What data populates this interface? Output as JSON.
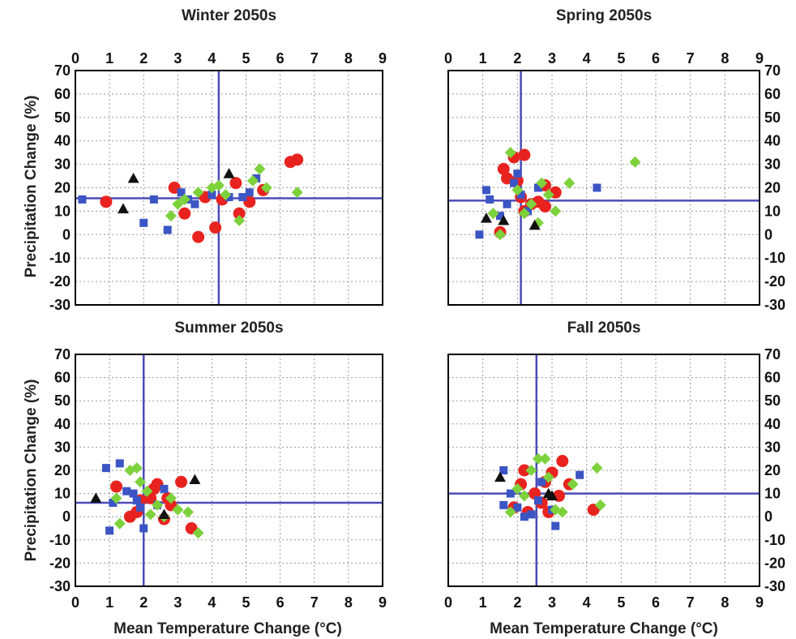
{
  "figure": {
    "ylabel": "Precipitation Change (%)",
    "xlabel": "Mean Temperature Change (°C)"
  },
  "chart_data": [
    {
      "type": "scatter",
      "title": "Winter 2050s",
      "xlim": [
        0,
        9
      ],
      "ylim": [
        -30,
        70
      ],
      "xticks": [
        "0",
        "1",
        "2",
        "3",
        "4",
        "5",
        "6",
        "7",
        "8",
        "9"
      ],
      "yticks": [
        "70",
        "60",
        "50",
        "40",
        "30",
        "20",
        "10",
        "0",
        "-10",
        "-20",
        "-30"
      ],
      "grid": true,
      "ref_x": 4.2,
      "ref_y": 15.5,
      "series": [
        {
          "marker": "circle",
          "color": "#e8231f",
          "points": [
            [
              0.9,
              14
            ],
            [
              2.9,
              20
            ],
            [
              3.2,
              9
            ],
            [
              3.6,
              -1
            ],
            [
              3.8,
              16
            ],
            [
              4.1,
              3
            ],
            [
              4.3,
              15
            ],
            [
              4.7,
              22
            ],
            [
              4.8,
              9
            ],
            [
              5.1,
              14
            ],
            [
              5.5,
              19
            ],
            [
              6.3,
              31
            ],
            [
              6.5,
              32
            ]
          ]
        },
        {
          "marker": "square",
          "color": "#3b55c4",
          "points": [
            [
              0.2,
              15
            ],
            [
              2.0,
              5
            ],
            [
              2.3,
              15
            ],
            [
              2.7,
              2
            ],
            [
              3.1,
              18
            ],
            [
              3.3,
              15
            ],
            [
              3.5,
              13
            ],
            [
              4.0,
              17
            ],
            [
              4.5,
              16
            ],
            [
              4.9,
              16
            ],
            [
              5.1,
              18
            ],
            [
              5.3,
              24
            ]
          ]
        },
        {
          "marker": "diamond",
          "color": "#7dd23c",
          "points": [
            [
              2.8,
              8
            ],
            [
              3.0,
              13
            ],
            [
              3.2,
              15
            ],
            [
              3.6,
              18
            ],
            [
              4.0,
              20
            ],
            [
              4.2,
              21
            ],
            [
              4.4,
              17
            ],
            [
              4.8,
              6
            ],
            [
              5.2,
              23
            ],
            [
              5.4,
              28
            ],
            [
              5.6,
              20
            ],
            [
              6.5,
              18
            ]
          ]
        },
        {
          "marker": "triangle",
          "color": "#111111",
          "points": [
            [
              1.4,
              11
            ],
            [
              1.7,
              24
            ],
            [
              4.5,
              26
            ]
          ]
        }
      ]
    },
    {
      "type": "scatter",
      "title": "Spring 2050s",
      "xlim": [
        0,
        9
      ],
      "ylim": [
        -30,
        70
      ],
      "xticks": [
        "0",
        "1",
        "2",
        "3",
        "4",
        "5",
        "6",
        "7",
        "8",
        "9"
      ],
      "yticks": [
        "70",
        "60",
        "50",
        "40",
        "30",
        "20",
        "10",
        "0",
        "-10",
        "-20",
        "-30"
      ],
      "grid": true,
      "ref_x": 2.1,
      "ref_y": 14.5,
      "series": [
        {
          "marker": "circle",
          "color": "#e8231f",
          "points": [
            [
              1.5,
              1
            ],
            [
              1.6,
              28
            ],
            [
              1.7,
              24
            ],
            [
              1.9,
              33
            ],
            [
              2.0,
              23
            ],
            [
              2.1,
              16
            ],
            [
              2.2,
              34
            ],
            [
              2.2,
              10
            ],
            [
              2.4,
              13
            ],
            [
              2.6,
              14
            ],
            [
              2.8,
              21
            ],
            [
              2.8,
              12
            ],
            [
              3.1,
              18
            ]
          ]
        },
        {
          "marker": "square",
          "color": "#3b55c4",
          "points": [
            [
              0.9,
              0
            ],
            [
              1.1,
              19
            ],
            [
              1.2,
              15
            ],
            [
              1.5,
              8
            ],
            [
              1.7,
              13
            ],
            [
              1.9,
              22
            ],
            [
              2.0,
              26
            ],
            [
              2.1,
              17
            ],
            [
              2.3,
              10
            ],
            [
              2.6,
              20
            ],
            [
              4.3,
              20
            ]
          ]
        },
        {
          "marker": "diamond",
          "color": "#7dd23c",
          "points": [
            [
              1.3,
              9
            ],
            [
              1.5,
              0
            ],
            [
              1.8,
              35
            ],
            [
              2.0,
              19
            ],
            [
              2.2,
              9
            ],
            [
              2.4,
              13
            ],
            [
              2.6,
              5
            ],
            [
              2.7,
              22
            ],
            [
              2.9,
              17
            ],
            [
              3.1,
              10
            ],
            [
              3.5,
              22
            ],
            [
              5.4,
              31
            ]
          ]
        },
        {
          "marker": "triangle",
          "color": "#111111",
          "points": [
            [
              1.1,
              7
            ],
            [
              1.6,
              6
            ],
            [
              2.5,
              4
            ]
          ]
        }
      ]
    },
    {
      "type": "scatter",
      "title": "Summer 2050s",
      "xlim": [
        0,
        9
      ],
      "ylim": [
        -30,
        70
      ],
      "xticks": [
        "0",
        "1",
        "2",
        "3",
        "4",
        "5",
        "6",
        "7",
        "8",
        "9"
      ],
      "yticks": [
        "70",
        "60",
        "50",
        "40",
        "30",
        "20",
        "10",
        "0",
        "-10",
        "-20",
        "-30"
      ],
      "grid": true,
      "ref_x": 2.0,
      "ref_y": 6.0,
      "series": [
        {
          "marker": "circle",
          "color": "#e8231f",
          "points": [
            [
              1.2,
              13
            ],
            [
              1.6,
              0
            ],
            [
              1.8,
              2
            ],
            [
              1.9,
              7
            ],
            [
              2.2,
              8
            ],
            [
              2.3,
              12
            ],
            [
              2.4,
              14
            ],
            [
              2.6,
              -1
            ],
            [
              2.7,
              8
            ],
            [
              2.8,
              5
            ],
            [
              3.1,
              15
            ],
            [
              3.4,
              -5
            ]
          ]
        },
        {
          "marker": "square",
          "color": "#3b55c4",
          "points": [
            [
              0.9,
              21
            ],
            [
              1.0,
              -6
            ],
            [
              1.1,
              6
            ],
            [
              1.3,
              23
            ],
            [
              1.5,
              11
            ],
            [
              1.7,
              10
            ],
            [
              1.8,
              7
            ],
            [
              1.9,
              4
            ],
            [
              2.0,
              -5
            ],
            [
              2.4,
              5
            ],
            [
              2.6,
              12
            ]
          ]
        },
        {
          "marker": "diamond",
          "color": "#7dd23c",
          "points": [
            [
              1.2,
              8
            ],
            [
              1.3,
              -3
            ],
            [
              1.6,
              20
            ],
            [
              1.8,
              21
            ],
            [
              1.9,
              15
            ],
            [
              2.1,
              11
            ],
            [
              2.2,
              1
            ],
            [
              2.4,
              5
            ],
            [
              2.6,
              0
            ],
            [
              2.8,
              8
            ],
            [
              3.0,
              3
            ],
            [
              3.3,
              2
            ],
            [
              3.6,
              -7
            ]
          ]
        },
        {
          "marker": "triangle",
          "color": "#111111",
          "points": [
            [
              0.6,
              8
            ],
            [
              2.6,
              1
            ],
            [
              3.5,
              16
            ]
          ]
        }
      ]
    },
    {
      "type": "scatter",
      "title": "Fall 2050s",
      "xlim": [
        0,
        9
      ],
      "ylim": [
        -30,
        70
      ],
      "xticks": [
        "0",
        "1",
        "2",
        "3",
        "4",
        "5",
        "6",
        "7",
        "8",
        "9"
      ],
      "yticks": [
        "70",
        "60",
        "50",
        "40",
        "30",
        "20",
        "10",
        "0",
        "-10",
        "-20",
        "-30"
      ],
      "grid": true,
      "ref_x": 2.55,
      "ref_y": 10.0,
      "series": [
        {
          "marker": "circle",
          "color": "#e8231f",
          "points": [
            [
              1.9,
              4
            ],
            [
              2.1,
              14
            ],
            [
              2.2,
              20
            ],
            [
              2.3,
              2
            ],
            [
              2.5,
              10
            ],
            [
              2.7,
              6
            ],
            [
              2.8,
              15
            ],
            [
              2.9,
              2
            ],
            [
              3.0,
              19
            ],
            [
              3.2,
              9
            ],
            [
              3.3,
              24
            ],
            [
              3.5,
              14
            ],
            [
              4.2,
              3
            ]
          ]
        },
        {
          "marker": "square",
          "color": "#3b55c4",
          "points": [
            [
              1.6,
              5
            ],
            [
              1.6,
              20
            ],
            [
              1.8,
              10
            ],
            [
              2.0,
              4
            ],
            [
              2.2,
              0
            ],
            [
              2.4,
              1
            ],
            [
              2.6,
              7
            ],
            [
              2.7,
              15
            ],
            [
              3.0,
              3
            ],
            [
              3.1,
              -4
            ],
            [
              3.8,
              18
            ]
          ]
        },
        {
          "marker": "diamond",
          "color": "#7dd23c",
          "points": [
            [
              1.8,
              2
            ],
            [
              2.0,
              12
            ],
            [
              2.2,
              9
            ],
            [
              2.4,
              20
            ],
            [
              2.6,
              25
            ],
            [
              2.8,
              25
            ],
            [
              2.9,
              17
            ],
            [
              3.1,
              3
            ],
            [
              3.3,
              2
            ],
            [
              3.6,
              14
            ],
            [
              4.3,
              21
            ],
            [
              4.4,
              5
            ]
          ]
        },
        {
          "marker": "triangle",
          "color": "#111111",
          "points": [
            [
              1.5,
              17
            ],
            [
              2.9,
              10
            ],
            [
              3.0,
              9
            ]
          ]
        }
      ]
    }
  ]
}
